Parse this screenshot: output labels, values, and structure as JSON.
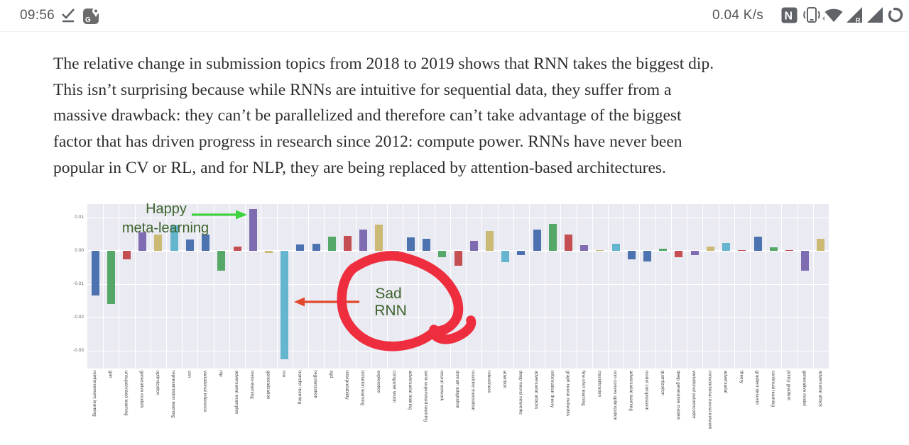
{
  "status_bar": {
    "time": "09:56",
    "net_speed": "0.04 K/s",
    "icon_color": "#5f6368",
    "icons_left": [
      "check-underline-icon",
      "maps-icon"
    ],
    "icons_right": [
      "nfc-icon",
      "vibrate-icon",
      "wifi-icon",
      "signal-roaming-icon",
      "signal-icon",
      "battery-ring-icon"
    ]
  },
  "article": {
    "lines": [
      "The relative change in submission topics from 2018 to 2019 shows that RNN takes the biggest dip.",
      "This isn’t surprising because while RNNs are intuitive for sequential data, they suffer from a",
      "massive drawback: they can’t be parallelized and therefore can’t take advantage of the biggest",
      "factor that has driven progress in research since 2012: compute power. RNNs have never been",
      "popular in CV or RL, and for NLP, they are being replaced by attention-based architectures."
    ]
  },
  "chart_data": {
    "type": "bar",
    "title": "",
    "xlabel": "",
    "ylabel": "",
    "ylim": [
      -0.0353,
      0.014
    ],
    "grid": true,
    "plot_bg": "#eaeaf2",
    "yticks": [
      0.01,
      0.0,
      -0.01,
      -0.02,
      -0.03
    ],
    "categories": [
      "reinforcement learning",
      "gan",
      "unsupervised learning",
      "generative models",
      "optimization",
      "representation learning",
      "cnn",
      "variational inference",
      "nlp",
      "adversarial examples",
      "meta-learning",
      "generalization",
      "rnn",
      "transfer learning",
      "regularization",
      "sgd",
      "interpretability",
      "imitation learning",
      "exploration",
      "computer vision",
      "adversarial training",
      "semi-supervised learning",
      "neural network",
      "domain adaptation",
      "machine translation",
      "robustness",
      "attention",
      "deep neural networks",
      "adversarial attacks",
      "information theory",
      "graph neural networks",
      "few-shot learning",
      "classification",
      "non-convex optimization",
      "adversarial learning",
      "model compression",
      "quantization",
      "deep generative models",
      "variational autoencoder",
      "convolutional neural network",
      "adversarial",
      "theory",
      "gradient descent",
      "continual learning",
      "policy gradient",
      "generative model",
      "adversarial attack"
    ],
    "values": [
      -0.0133,
      -0.016,
      -0.0025,
      0.0055,
      0.005,
      0.0077,
      0.0035,
      0.005,
      -0.006,
      0.0012,
      0.0125,
      -0.0006,
      -0.0325,
      0.002,
      0.0022,
      0.0042,
      0.0045,
      0.0063,
      0.0078,
      -0.0014,
      0.004,
      0.0037,
      -0.002,
      -0.0045,
      0.003,
      0.006,
      -0.0033,
      -0.0013,
      0.0063,
      0.008,
      0.005,
      0.0017,
      0.0002,
      0.0021,
      -0.0026,
      -0.0032,
      0.0007,
      -0.0019,
      -0.0012,
      0.0013,
      0.0023,
      0.0002,
      0.0043,
      0.0011,
      0.0002,
      -0.006,
      0.0037
    ],
    "colors": [
      "#4C72B0",
      "#55A868",
      "#C44E52",
      "#7E6BB2",
      "#CCB974",
      "#64B5CD",
      "#4C72B0",
      "#4C72B0",
      "#55A868",
      "#C44E52",
      "#7E6BB2",
      "#CCB974",
      "#64B5CD",
      "#4C72B0",
      "#4C72B0",
      "#55A868",
      "#C44E52",
      "#7E6BB2",
      "#CCB974",
      "#64B5CD",
      "#4C72B0",
      "#4C72B0",
      "#55A868",
      "#C44E52",
      "#7E6BB2",
      "#CCB974",
      "#64B5CD",
      "#4C72B0",
      "#4C72B0",
      "#55A868",
      "#C44E52",
      "#7E6BB2",
      "#CCB974",
      "#64B5CD",
      "#4C72B0",
      "#4C72B0",
      "#55A868",
      "#C44E52",
      "#7E6BB2",
      "#CCB974",
      "#64B5CD",
      "#C44E52",
      "#4C72B0",
      "#55A868",
      "#C44E52",
      "#7E6BB2",
      "#CCB974"
    ],
    "annotations": {
      "text_color": "#3d632c",
      "happy": {
        "line1": "Happy",
        "line2": "meta-learning",
        "target": "meta-learning",
        "arrow_color": "#3fd23f"
      },
      "sad": {
        "line1": "Sad",
        "line2": "RNN",
        "target": "rnn",
        "arrow_color": "#e0492c"
      },
      "circle_color": "#ee2d3e"
    }
  }
}
